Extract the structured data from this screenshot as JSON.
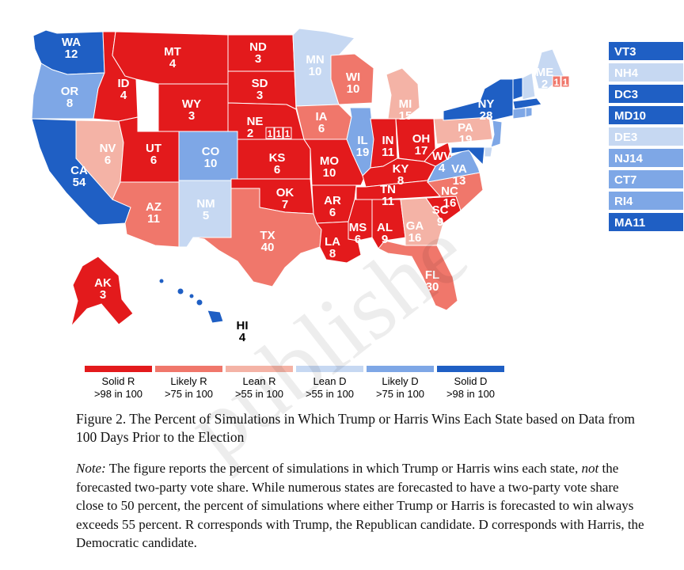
{
  "colors": {
    "solid_r": "#e31a1c",
    "likely_r": "#f0776b",
    "lean_r": "#f4b3a6",
    "lean_d": "#c6d8f2",
    "likely_d": "#7ea7e6",
    "solid_d": "#1f5fc4"
  },
  "map_label_states": [
    {
      "id": "WA",
      "abbr": "WA",
      "ev": "12",
      "rating": "solid_d"
    },
    {
      "id": "OR",
      "abbr": "OR",
      "ev": "8",
      "rating": "likely_d"
    },
    {
      "id": "CA",
      "abbr": "CA",
      "ev": "54",
      "rating": "solid_d"
    },
    {
      "id": "NV",
      "abbr": "NV",
      "ev": "6",
      "rating": "lean_r"
    },
    {
      "id": "ID",
      "abbr": "ID",
      "ev": "4",
      "rating": "solid_r"
    },
    {
      "id": "MT",
      "abbr": "MT",
      "ev": "4",
      "rating": "solid_r"
    },
    {
      "id": "WY",
      "abbr": "WY",
      "ev": "3",
      "rating": "solid_r"
    },
    {
      "id": "UT",
      "abbr": "UT",
      "ev": "6",
      "rating": "solid_r"
    },
    {
      "id": "CO",
      "abbr": "CO",
      "ev": "10",
      "rating": "likely_d"
    },
    {
      "id": "AZ",
      "abbr": "AZ",
      "ev": "11",
      "rating": "likely_r"
    },
    {
      "id": "NM",
      "abbr": "NM",
      "ev": "5",
      "rating": "lean_d"
    },
    {
      "id": "ND",
      "abbr": "ND",
      "ev": "3",
      "rating": "solid_r"
    },
    {
      "id": "SD",
      "abbr": "SD",
      "ev": "3",
      "rating": "solid_r"
    },
    {
      "id": "NE",
      "abbr": "NE",
      "ev": "2",
      "rating": "solid_r"
    },
    {
      "id": "KS",
      "abbr": "KS",
      "ev": "6",
      "rating": "solid_r"
    },
    {
      "id": "OK",
      "abbr": "OK",
      "ev": "7",
      "rating": "solid_r"
    },
    {
      "id": "TX",
      "abbr": "TX",
      "ev": "40",
      "rating": "likely_r"
    },
    {
      "id": "MN",
      "abbr": "MN",
      "ev": "10",
      "rating": "lean_d"
    },
    {
      "id": "IA",
      "abbr": "IA",
      "ev": "6",
      "rating": "likely_r"
    },
    {
      "id": "MO",
      "abbr": "MO",
      "ev": "10",
      "rating": "solid_r"
    },
    {
      "id": "AR",
      "abbr": "AR",
      "ev": "6",
      "rating": "solid_r"
    },
    {
      "id": "LA",
      "abbr": "LA",
      "ev": "8",
      "rating": "solid_r"
    },
    {
      "id": "WI",
      "abbr": "WI",
      "ev": "10",
      "rating": "likely_r"
    },
    {
      "id": "IL",
      "abbr": "IL",
      "ev": "19",
      "rating": "likely_d"
    },
    {
      "id": "MI",
      "abbr": "MI",
      "ev": "15",
      "rating": "lean_r"
    },
    {
      "id": "IN",
      "abbr": "IN",
      "ev": "11",
      "rating": "solid_r"
    },
    {
      "id": "OH",
      "abbr": "OH",
      "ev": "17",
      "rating": "solid_r"
    },
    {
      "id": "KY",
      "abbr": "KY",
      "ev": "8",
      "rating": "solid_r"
    },
    {
      "id": "TN",
      "abbr": "TN",
      "ev": "11",
      "rating": "solid_r"
    },
    {
      "id": "MS",
      "abbr": "MS",
      "ev": "6",
      "rating": "solid_r"
    },
    {
      "id": "AL",
      "abbr": "AL",
      "ev": "9",
      "rating": "solid_r"
    },
    {
      "id": "GA",
      "abbr": "GA",
      "ev": "16",
      "rating": "lean_r"
    },
    {
      "id": "FL",
      "abbr": "FL",
      "ev": "30",
      "rating": "likely_r"
    },
    {
      "id": "SC",
      "abbr": "SC",
      "ev": "9",
      "rating": "solid_r"
    },
    {
      "id": "NC",
      "abbr": "NC",
      "ev": "16",
      "rating": "likely_r"
    },
    {
      "id": "VA",
      "abbr": "VA",
      "ev": "13",
      "rating": "likely_d"
    },
    {
      "id": "WV",
      "abbr": "WV",
      "ev": "4",
      "rating": "solid_r"
    },
    {
      "id": "PA",
      "abbr": "PA",
      "ev": "19",
      "rating": "lean_r"
    },
    {
      "id": "NY",
      "abbr": "NY",
      "ev": "28",
      "rating": "solid_d"
    },
    {
      "id": "ME",
      "abbr": "ME",
      "ev": "2",
      "rating": "lean_d"
    },
    {
      "id": "AK",
      "abbr": "AK",
      "ev": "3",
      "rating": "solid_r"
    },
    {
      "id": "HI",
      "abbr": "HI",
      "ev": "4",
      "rating": "solid_d"
    }
  ],
  "district_boxes": {
    "ne": [
      "1",
      "1",
      "1"
    ],
    "me": [
      "1",
      "1"
    ]
  },
  "small_states": [
    {
      "label": "VT3",
      "rating": "solid_d"
    },
    {
      "label": "NH4",
      "rating": "lean_d"
    },
    {
      "label": "DC3",
      "rating": "solid_d"
    },
    {
      "label": "MD10",
      "rating": "solid_d"
    },
    {
      "label": "DE3",
      "rating": "lean_d"
    },
    {
      "label": "NJ14",
      "rating": "likely_d"
    },
    {
      "label": "CT7",
      "rating": "likely_d"
    },
    {
      "label": "RI4",
      "rating": "likely_d"
    },
    {
      "label": "MA11",
      "rating": "solid_d"
    }
  ],
  "legend": [
    {
      "key": "solid_r",
      "line1": "Solid R",
      "line2": ">98 in 100"
    },
    {
      "key": "likely_r",
      "line1": "Likely R",
      "line2": ">75 in 100"
    },
    {
      "key": "lean_r",
      "line1": "Lean R",
      "line2": ">55 in 100"
    },
    {
      "key": "lean_d",
      "line1": "Lean D",
      "line2": ">55 in 100"
    },
    {
      "key": "likely_d",
      "line1": "Likely D",
      "line2": ">75 in 100"
    },
    {
      "key": "solid_d",
      "line1": "Solid D",
      "line2": ">98 in 100"
    }
  ],
  "caption": "Figure 2. The Percent of Simulations in Which Trump or Harris Wins Each State based on Data from 100 Days Prior to the Election",
  "note": {
    "label": "Note:",
    "text_a": " The figure reports the percent of simulations in which Trump or Harris wins each state, ",
    "emph": "not",
    "text_b": " the forecasted two-party vote share. While numerous states are forecasted to have a two-party vote share close to 50 percent, the percent of simulations where either Trump or Harris is forecasted to win always exceeds 55 percent. R corresponds with Trump, the Republican candidate. D corresponds with Harris, the Democratic candidate."
  },
  "watermark": "publishe"
}
